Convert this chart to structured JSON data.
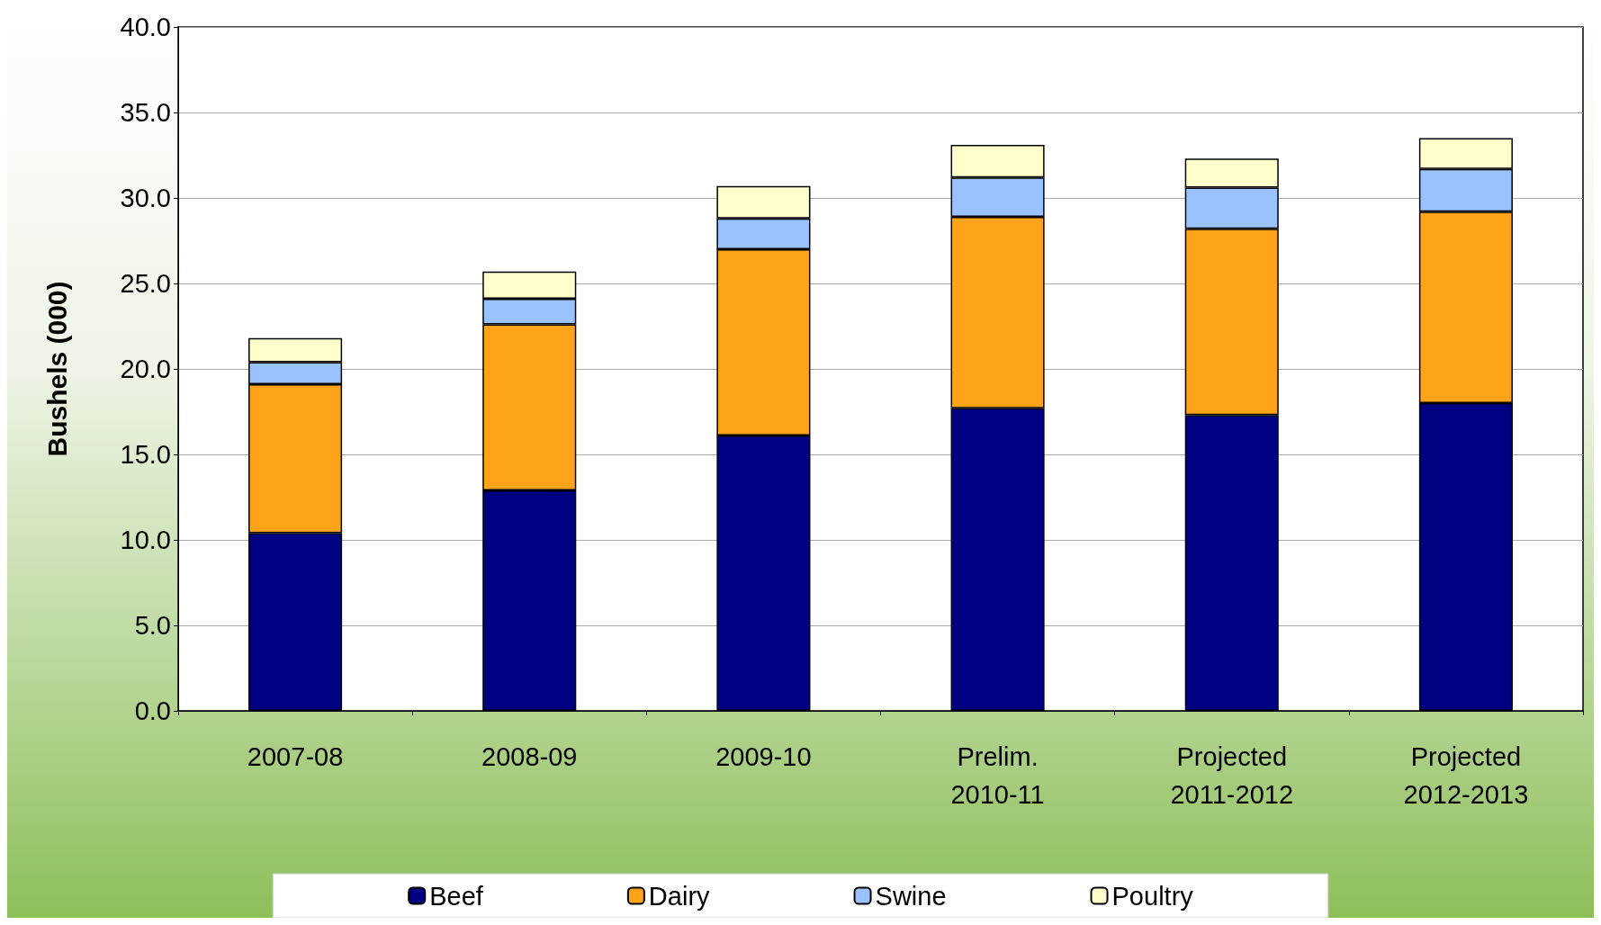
{
  "chart_data": {
    "type": "bar",
    "stacked": true,
    "ylabel": "Bushels (000)",
    "categories": [
      "2007-08",
      "2008-09",
      "2009-10",
      "Prelim.\n2010-11",
      "Projected\n2011-2012",
      "Projected\n2012-2013"
    ],
    "series": [
      {
        "name": "Beef",
        "color": "#000080",
        "values": [
          10.4,
          12.9,
          16.1,
          17.7,
          17.3,
          18.0
        ]
      },
      {
        "name": "Dairy",
        "color": "#ffa319",
        "values": [
          8.7,
          9.7,
          10.9,
          11.2,
          10.9,
          11.2
        ]
      },
      {
        "name": "Swine",
        "color": "#99c2ff",
        "values": [
          1.3,
          1.5,
          1.8,
          2.3,
          2.4,
          2.5
        ]
      },
      {
        "name": "Poultry",
        "color": "#ffffcc",
        "values": [
          1.4,
          1.6,
          1.9,
          1.9,
          1.7,
          1.8
        ]
      }
    ],
    "ylim": [
      0,
      40
    ],
    "yticks": [
      {
        "value": 0,
        "label": "0.0"
      },
      {
        "value": 5,
        "label": "5.0"
      },
      {
        "value": 10,
        "label": "10.0"
      },
      {
        "value": 15,
        "label": "15.0"
      },
      {
        "value": 20,
        "label": "20.0"
      },
      {
        "value": 25,
        "label": "25.0"
      },
      {
        "value": 30,
        "label": "30.0"
      },
      {
        "value": 35,
        "label": "35.0"
      },
      {
        "value": 40,
        "label": "40.0"
      }
    ],
    "grid": "y",
    "legend": "bottom"
  }
}
